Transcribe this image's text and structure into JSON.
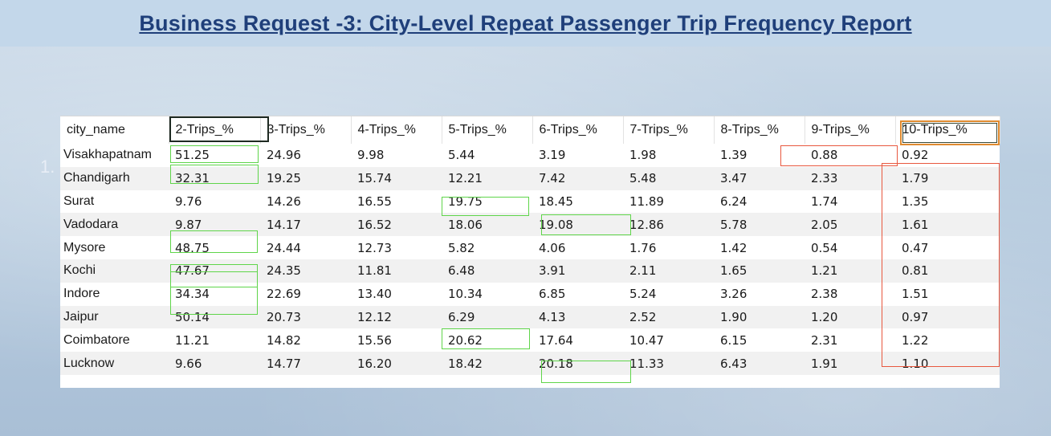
{
  "page": {
    "title": "Business Request -3: City-Level Repeat Passenger Trip Frequency Report",
    "side_mark": "1."
  },
  "table": {
    "columns": [
      "city_name",
      "2-Trips_%",
      "3-Trips_%",
      "4-Trips_%",
      "5-Trips_%",
      "6-Trips_%",
      "7-Trips_%",
      "8-Trips_%",
      "9-Trips_%",
      "10-Trips_%"
    ],
    "rows": [
      [
        "Visakhapatnam",
        "51.25",
        "24.96",
        "9.98",
        "5.44",
        "3.19",
        "1.98",
        "1.39",
        "0.88",
        "0.92"
      ],
      [
        "Chandigarh",
        "32.31",
        "19.25",
        "15.74",
        "12.21",
        "7.42",
        "5.48",
        "3.47",
        "2.33",
        "1.79"
      ],
      [
        "Surat",
        "9.76",
        "14.26",
        "16.55",
        "19.75",
        "18.45",
        "11.89",
        "6.24",
        "1.74",
        "1.35"
      ],
      [
        "Vadodara",
        "9.87",
        "14.17",
        "16.52",
        "18.06",
        "19.08",
        "12.86",
        "5.78",
        "2.05",
        "1.61"
      ],
      [
        "Mysore",
        "48.75",
        "24.44",
        "12.73",
        "5.82",
        "4.06",
        "1.76",
        "1.42",
        "0.54",
        "0.47"
      ],
      [
        "Kochi",
        "47.67",
        "24.35",
        "11.81",
        "6.48",
        "3.91",
        "2.11",
        "1.65",
        "1.21",
        "0.81"
      ],
      [
        "Indore",
        "34.34",
        "22.69",
        "13.40",
        "10.34",
        "6.85",
        "5.24",
        "3.26",
        "2.38",
        "1.51"
      ],
      [
        "Jaipur",
        "50.14",
        "20.73",
        "12.12",
        "6.29",
        "4.13",
        "2.52",
        "1.90",
        "1.20",
        "0.97"
      ],
      [
        "Coimbatore",
        "11.21",
        "14.82",
        "15.56",
        "20.62",
        "17.64",
        "10.47",
        "6.15",
        "2.31",
        "1.22"
      ],
      [
        "Lucknow",
        "9.66",
        "14.77",
        "16.20",
        "18.42",
        "20.18",
        "11.33",
        "6.43",
        "1.91",
        "1.10"
      ]
    ]
  },
  "colors": {
    "title": "#1f3f7a",
    "green_highlight": "#5fd54a",
    "red_highlight": "#e8583f",
    "orange_highlight": "#e08b30"
  }
}
